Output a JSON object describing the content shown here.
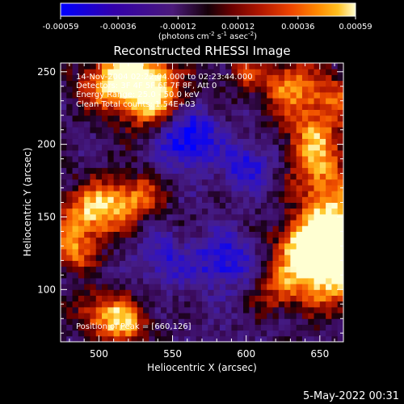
{
  "colorbar": {
    "ticks": [
      "-0.00059",
      "-0.00036",
      "-0.00012",
      "0.00012",
      "0.00036",
      "0.00059"
    ],
    "tick_values": [
      -0.00059,
      -0.00036,
      -0.00012,
      0.00012,
      0.00036,
      0.00059
    ],
    "units_main": "(photons cm",
    "units_exp1": "-2",
    "units_s": " s",
    "units_exp2": "-1",
    "units_asec": " asec",
    "units_exp3": "-2",
    "units_close": ")",
    "colors": [
      "#0000ff",
      "#3300aa",
      "#4b1a7a",
      "#250510",
      "#6a0000",
      "#b31800",
      "#ee4400",
      "#ff8800",
      "#ffc020",
      "#ffffd0"
    ]
  },
  "plot": {
    "title": "Reconstructed RHESSI Image",
    "info_lines": [
      "14-Nov-2004 02:22:04.000 to 02:23:44.000",
      "Detectors: 3F 4F 5F 6F 7F 8F, Att 0",
      "Energy Range: 25.0 - 50.0 keV",
      "Clean    Total counts: 1.54E+03"
    ],
    "peak_text": "Position of Peak = [660,126]",
    "footer": "5-May-2022 00:31"
  },
  "chart_data": {
    "type": "heatmap",
    "title": "Reconstructed RHESSI Image",
    "xlabel": "Heliocentric X (arcsec)",
    "ylabel": "Heliocentric Y (arcsec)",
    "xlim": [
      474,
      666
    ],
    "ylim": [
      64,
      256
    ],
    "x_ticks": [
      500,
      550,
      600,
      650
    ],
    "y_ticks": [
      100,
      150,
      200,
      250
    ],
    "colorbar_range": [
      -0.00059,
      0.00059
    ],
    "peak_position": [
      660,
      126
    ],
    "grid": false,
    "colormap": "blue-purple-black-red-yellow-white"
  }
}
